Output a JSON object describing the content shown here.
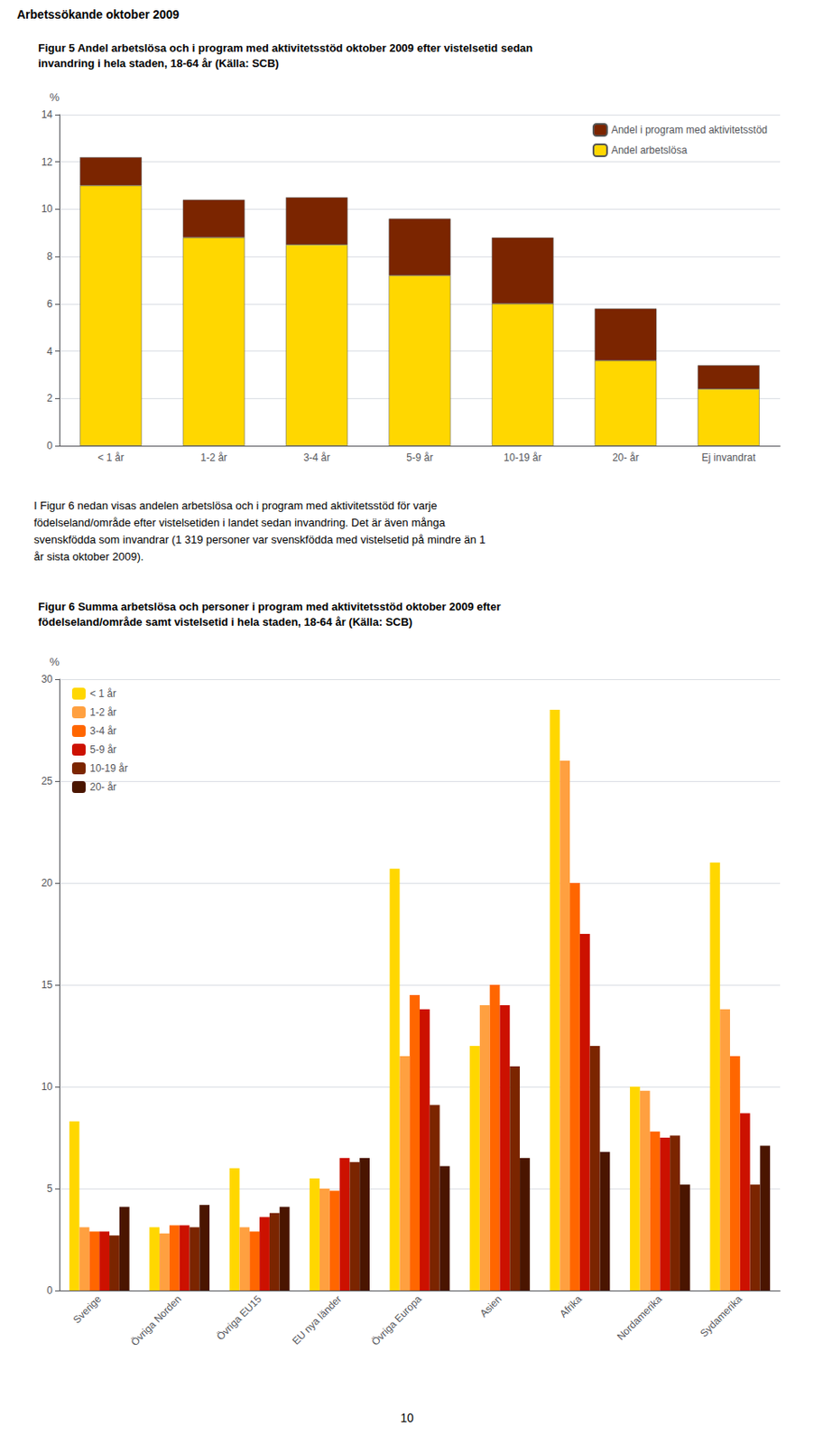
{
  "chart_data": [
    {
      "type": "bar",
      "title": "Figur 5 Andel arbetslösa och i program med aktivitetsstöd oktober 2009 efter vistelsetid sedan\ninvandring i hela staden, 18-64 år (Källa: SCB)",
      "annotations": [
        "Arbetssökande oktober 2009"
      ],
      "ylabel": "%",
      "categories": [
        "< 1 år",
        "1-2 år",
        "3-4 år",
        "5-9 år",
        "10-19 år",
        "20- år",
        "Ej invandrat"
      ],
      "series": [
        {
          "name": "Andel arbetslösa",
          "color": "#FFD700",
          "values": [
            11.0,
            8.8,
            8.5,
            7.2,
            6.0,
            3.6,
            2.4
          ]
        },
        {
          "name": "Andel i program med aktivitetsstöd",
          "color": "#7B2500",
          "values": [
            1.2,
            1.6,
            2.0,
            2.4,
            2.8,
            2.2,
            1.0
          ]
        }
      ],
      "stacked": true,
      "ylim": [
        0,
        14
      ],
      "yticks": [
        0,
        2,
        4,
        6,
        8,
        10,
        12,
        14
      ],
      "grid": true,
      "legend": "upper right"
    },
    {
      "type": "bar",
      "title": "Figur 6 Summa arbetslösa och personer i program med aktivitetsstöd oktober 2009 efter\nfödelseland/område samt vistelsetid i hela staden, 18-64 år (Källa: SCB)",
      "annotations": [
        "I Figur 6 nedan visas andelen arbetslösa och i program med aktivitetsstöd för varje\nfödelseland/område efter vistelsetiden i landet sedan invandring. Det är även många\nsvenskfödda som invandrar (1 319 personer var svenskfödda med vistelsetid på mindre än 1\når sista oktober 2009).",
        "10"
      ],
      "ylabel": "%",
      "categories": [
        "Sverige",
        "Övriga Norden",
        "Övriga EU15",
        "EU nya länder",
        "Övriga Europa",
        "Asien",
        "Afrika",
        "Nordamerika",
        "Sydamerika"
      ],
      "series": [
        {
          "name": "< 1 år",
          "color": "#FFD700",
          "values": [
            8.3,
            3.1,
            6.0,
            5.5,
            20.7,
            12.0,
            28.5,
            10.0,
            21.0
          ]
        },
        {
          "name": "1-2 år",
          "color": "#FFA040",
          "values": [
            3.1,
            2.8,
            3.1,
            5.0,
            11.5,
            14.0,
            26.0,
            9.8,
            13.8
          ]
        },
        {
          "name": "3-4 år",
          "color": "#FF6600",
          "values": [
            2.9,
            3.2,
            2.9,
            4.9,
            14.5,
            15.0,
            20.0,
            7.8,
            11.5
          ]
        },
        {
          "name": "5-9 år",
          "color": "#CC1100",
          "values": [
            2.9,
            3.2,
            3.6,
            6.5,
            13.8,
            14.0,
            17.5,
            7.5,
            8.7
          ]
        },
        {
          "name": "10-19 år",
          "color": "#7B2500",
          "values": [
            2.7,
            3.1,
            3.8,
            6.3,
            9.1,
            11.0,
            12.0,
            7.6,
            5.2
          ]
        },
        {
          "name": "20- år",
          "color": "#4A1500",
          "values": [
            4.1,
            4.2,
            4.1,
            6.5,
            6.1,
            6.5,
            6.8,
            5.2,
            7.1
          ]
        }
      ],
      "ylim": [
        0,
        30
      ],
      "yticks": [
        0,
        5,
        10,
        15,
        20,
        25,
        30
      ],
      "grid": true,
      "legend": "upper left"
    }
  ]
}
